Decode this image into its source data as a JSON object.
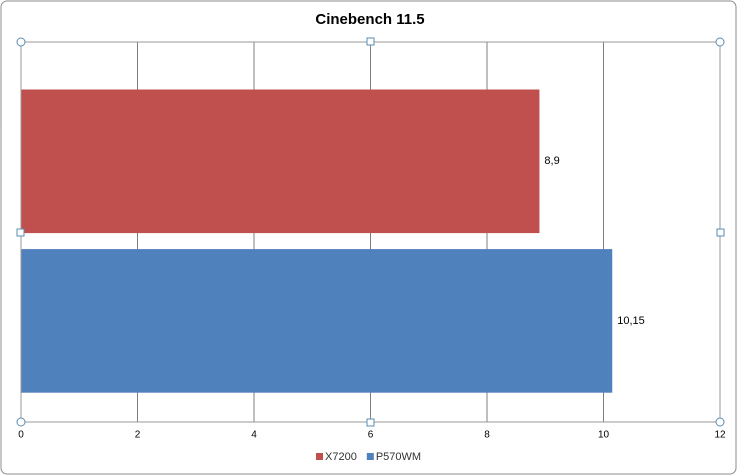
{
  "chart_data": {
    "type": "bar",
    "orientation": "horizontal",
    "title": "Cinebench 11.5",
    "categories": [
      null
    ],
    "series": [
      {
        "name": "X7200",
        "color": "#c0504d",
        "values": [
          8.9
        ],
        "value_labels": [
          "8,9"
        ]
      },
      {
        "name": "P570WM",
        "color": "#4f81bd",
        "values": [
          10.15
        ],
        "value_labels": [
          "10,15"
        ]
      }
    ],
    "xlim": [
      0,
      12
    ],
    "xticks": [
      0,
      2,
      4,
      6,
      8,
      10,
      12
    ],
    "grid": true,
    "legend": "bottom"
  }
}
